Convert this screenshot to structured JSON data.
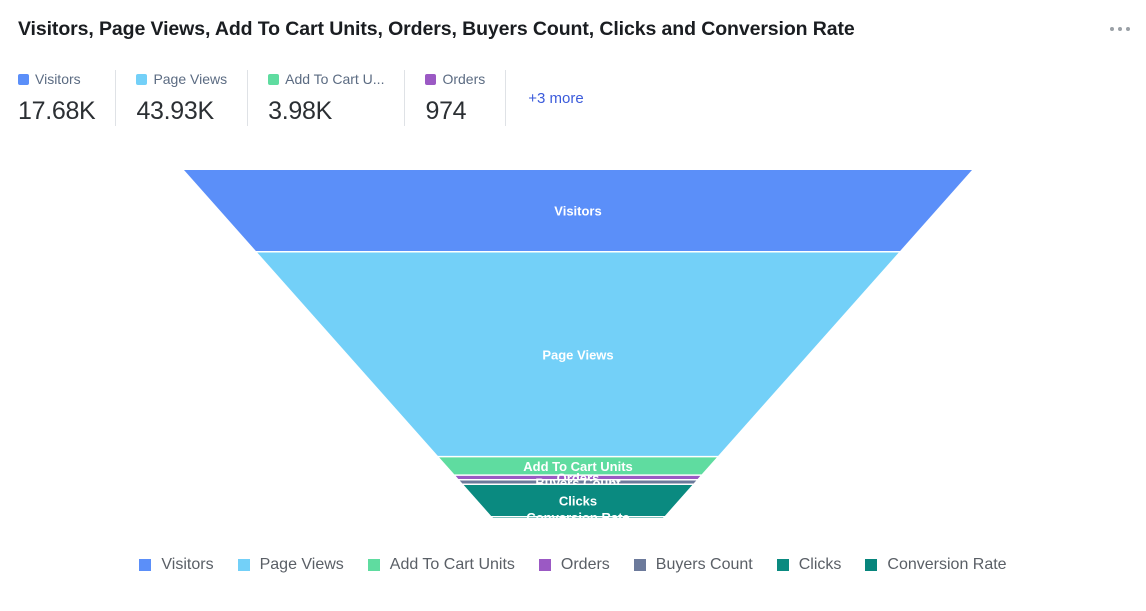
{
  "header": {
    "title": "Visitors, Page Views, Add To Cart Units, Orders, Buyers Count, Clicks and Conversion Rate",
    "menu_icon": "more-horizontal-icon"
  },
  "kpis": [
    {
      "label": "Visitors",
      "value": "17.68K",
      "color": "#5b8ff9"
    },
    {
      "label": "Page Views",
      "value": "43.93K",
      "color": "#73d0f8"
    },
    {
      "label": "Add To Cart U...",
      "value": "3.98K",
      "color": "#5fdca0"
    },
    {
      "label": "Orders",
      "value": "974",
      "color": "#9b59c4"
    }
  ],
  "kpi_more": "+3 more",
  "chart_data": {
    "type": "funnel",
    "title": "Visitors, Page Views, Add To Cart Units, Orders, Buyers Count, Clicks and Conversion Rate",
    "legend_position": "bottom",
    "series": [
      {
        "name": "Visitors",
        "value": 17680,
        "color": "#5b8ff9"
      },
      {
        "name": "Page Views",
        "value": 43930,
        "color": "#73d0f8"
      },
      {
        "name": "Add To Cart Units",
        "value": 3980,
        "color": "#5fdca0"
      },
      {
        "name": "Orders",
        "value": 974,
        "color": "#9b59c4"
      },
      {
        "name": "Buyers Count",
        "value": 974,
        "color": "#6c7a9b"
      },
      {
        "name": "Clicks",
        "value": 6950,
        "color": "#0a8a80"
      },
      {
        "name": "Conversion Rate",
        "value": 120,
        "color": "#07857c"
      }
    ]
  }
}
